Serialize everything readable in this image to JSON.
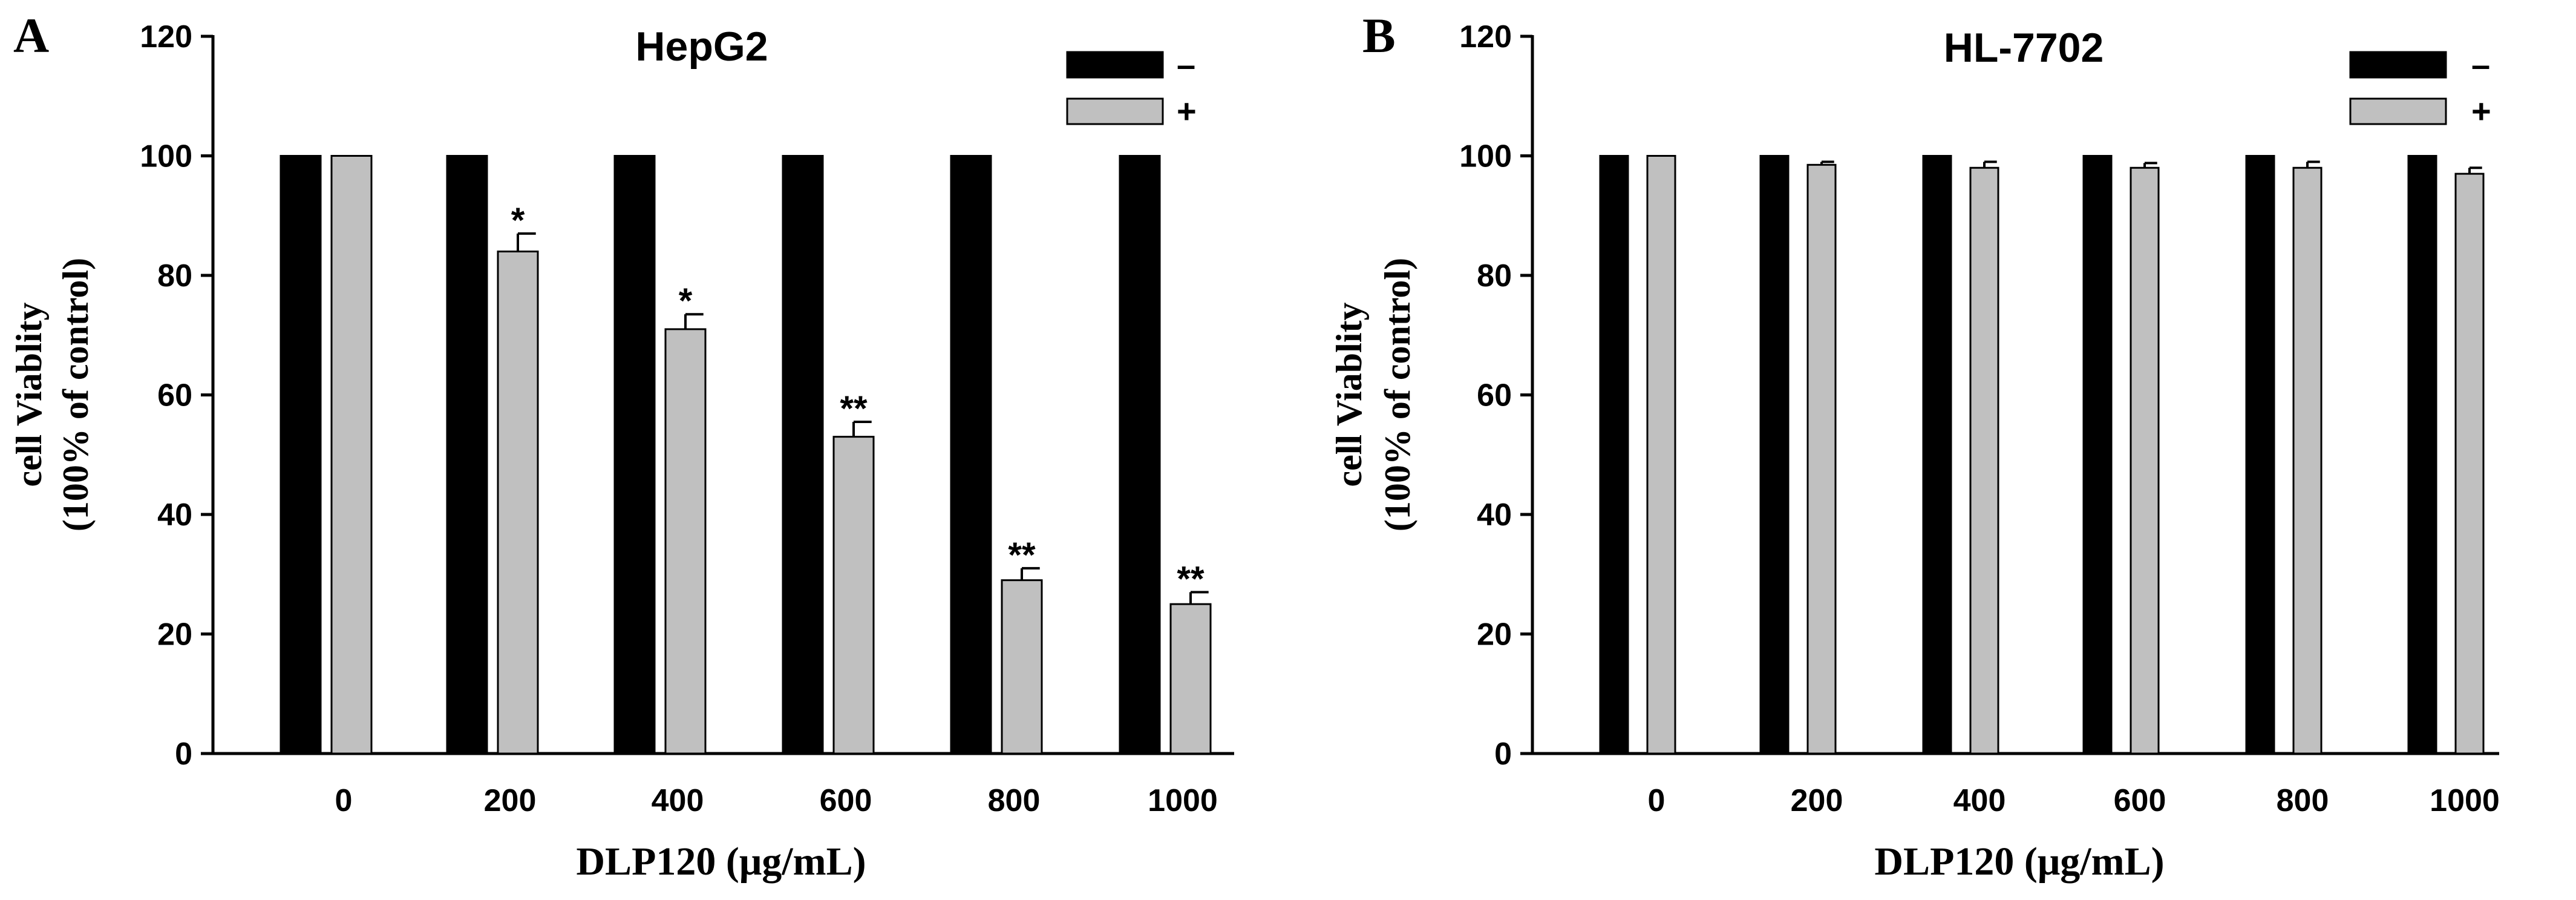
{
  "chart_data": [
    {
      "type": "bar",
      "panel_label": "A",
      "title": "HepG2",
      "xlabel": "DLP120 (μg/mL)",
      "ylabel": [
        "cell Viablity",
        "(100% of control)"
      ],
      "ylim": [
        0,
        120
      ],
      "yticks": [
        0,
        20,
        40,
        60,
        80,
        100,
        120
      ],
      "categories": [
        "0",
        "200",
        "400",
        "600",
        "800",
        "1000"
      ],
      "series": [
        {
          "name": "–",
          "color": "#000000",
          "values": [
            100,
            100,
            100,
            100,
            100,
            100
          ],
          "errors": [
            0,
            0,
            0,
            0,
            0,
            0
          ]
        },
        {
          "name": "+",
          "color": "#c0c0c0",
          "values": [
            100,
            84,
            71,
            53,
            29,
            25
          ],
          "errors": [
            0,
            3,
            2.5,
            2.5,
            2,
            2
          ]
        }
      ],
      "significance": [
        "",
        "*",
        "*",
        "**",
        "**",
        "**"
      ],
      "legend": "top-right"
    },
    {
      "type": "bar",
      "panel_label": "B",
      "title": "HL-7702",
      "xlabel": "DLP120 (μg/mL)",
      "ylabel": [
        "cell Viablity",
        "(100% of control)"
      ],
      "ylim": [
        0,
        120
      ],
      "yticks": [
        0,
        20,
        40,
        60,
        80,
        100,
        120
      ],
      "categories": [
        "0",
        "200",
        "400",
        "600",
        "800",
        "1000"
      ],
      "series": [
        {
          "name": "–",
          "color": "#000000",
          "values": [
            100,
            100,
            100,
            100,
            100,
            100
          ],
          "errors": [
            0,
            0,
            0,
            0,
            0,
            0
          ]
        },
        {
          "name": "+",
          "color": "#c0c0c0",
          "values": [
            100,
            98.5,
            98,
            98,
            98,
            97
          ],
          "errors": [
            0,
            0.5,
            1,
            0.8,
            1,
            1
          ]
        }
      ],
      "significance": [
        "",
        "",
        "",
        "",
        "",
        ""
      ],
      "legend": "top-right"
    }
  ]
}
